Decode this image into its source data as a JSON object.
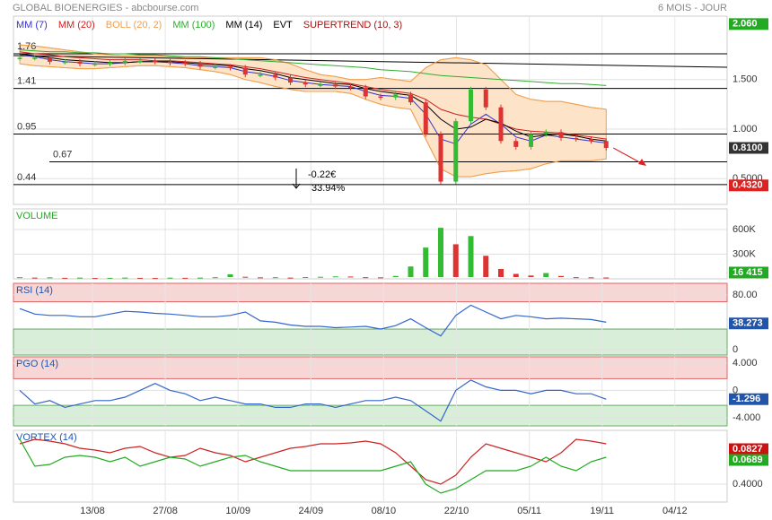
{
  "header": {
    "title": "GLOBAL BIOENERGIES - abcbourse.com",
    "period": "6 MOIS - JOUR"
  },
  "x_axis": {
    "labels": [
      "13/08",
      "27/08",
      "10/09",
      "24/09",
      "08/10",
      "22/10",
      "05/11",
      "19/11",
      "04/12"
    ]
  },
  "chart_data": [
    {
      "type": "candlestick",
      "values": [
        1.72,
        1.72,
        1.68,
        1.68,
        1.66,
        1.66,
        1.67,
        1.69,
        1.69,
        1.68,
        1.67,
        1.66,
        1.63,
        1.63,
        1.62,
        1.55,
        1.55,
        1.52,
        1.47,
        1.45,
        1.45,
        1.43,
        1.42,
        1.33,
        1.32,
        1.35,
        1.27,
        0.95,
        0.47,
        1.08,
        1.4,
        1.22,
        0.88,
        0.82,
        0.95,
        0.97,
        0.91,
        0.9,
        0.88,
        0.81
      ],
      "series": [
        {
          "name": "MM (7)",
          "color": "#3333cc",
          "values": [
            1.75,
            1.73,
            1.7,
            1.68,
            1.67,
            1.66,
            1.66,
            1.67,
            1.68,
            1.68,
            1.67,
            1.66,
            1.64,
            1.63,
            1.62,
            1.58,
            1.56,
            1.53,
            1.49,
            1.47,
            1.45,
            1.44,
            1.43,
            1.38,
            1.34,
            1.33,
            1.31,
            1.15,
            0.9,
            0.85,
            1.05,
            1.15,
            1.05,
            0.92,
            0.88,
            0.94,
            0.92,
            0.9,
            0.88,
            0.86
          ]
        },
        {
          "name": "MM (20)",
          "color": "#cc2222",
          "values": [
            1.78,
            1.76,
            1.75,
            1.73,
            1.72,
            1.71,
            1.7,
            1.7,
            1.7,
            1.69,
            1.69,
            1.68,
            1.67,
            1.66,
            1.65,
            1.63,
            1.61,
            1.58,
            1.55,
            1.52,
            1.5,
            1.48,
            1.46,
            1.43,
            1.4,
            1.38,
            1.36,
            1.3,
            1.2,
            1.15,
            1.12,
            1.1,
            1.05,
            1.0,
            0.98,
            0.97,
            0.96,
            0.94,
            0.92,
            0.9
          ]
        },
        {
          "name": "BOLL (20, 2)",
          "color": "#f0a050",
          "values": [
            1.85,
            1.84,
            1.82,
            1.8,
            1.78,
            1.76,
            1.75,
            1.74,
            1.74,
            1.74,
            1.73,
            1.72,
            1.72,
            1.72,
            1.72,
            1.72,
            1.72,
            1.7,
            1.66,
            1.6,
            1.55,
            1.53,
            1.5,
            1.5,
            1.52,
            1.5,
            1.48,
            1.62,
            1.7,
            1.72,
            1.7,
            1.65,
            1.5,
            1.35,
            1.3,
            1.28,
            1.28,
            1.25,
            1.22,
            1.2
          ],
          "lower": [
            1.66,
            1.64,
            1.63,
            1.62,
            1.61,
            1.61,
            1.62,
            1.63,
            1.64,
            1.64,
            1.63,
            1.62,
            1.6,
            1.58,
            1.55,
            1.5,
            1.47,
            1.43,
            1.4,
            1.38,
            1.38,
            1.38,
            1.36,
            1.3,
            1.25,
            1.22,
            1.2,
            0.9,
            0.6,
            0.52,
            0.52,
            0.55,
            0.57,
            0.58,
            0.6,
            0.65,
            0.68,
            0.68,
            0.68,
            0.7
          ]
        },
        {
          "name": "MM (100)",
          "color": "#33aa33",
          "values": [
            1.8,
            1.79,
            1.78,
            1.78,
            1.77,
            1.77,
            1.76,
            1.76,
            1.75,
            1.75,
            1.74,
            1.73,
            1.73,
            1.72,
            1.71,
            1.7,
            1.69,
            1.68,
            1.67,
            1.66,
            1.65,
            1.64,
            1.63,
            1.62,
            1.6,
            1.59,
            1.58,
            1.56,
            1.54,
            1.53,
            1.52,
            1.51,
            1.5,
            1.49,
            1.48,
            1.47,
            1.46,
            1.46,
            1.45,
            1.44
          ]
        },
        {
          "name": "MM (14)",
          "color": "#000000",
          "values": [
            1.76,
            1.74,
            1.72,
            1.7,
            1.69,
            1.68,
            1.67,
            1.67,
            1.68,
            1.68,
            1.68,
            1.67,
            1.66,
            1.65,
            1.64,
            1.61,
            1.59,
            1.56,
            1.52,
            1.5,
            1.48,
            1.46,
            1.45,
            1.41,
            1.38,
            1.36,
            1.34,
            1.25,
            1.1,
            1.0,
            1.02,
            1.1,
            1.06,
            0.98,
            0.92,
            0.94,
            0.95,
            0.93,
            0.9,
            0.88
          ]
        }
      ],
      "legend_extra": [
        {
          "name": "EVT",
          "color": "#000000"
        },
        {
          "name": "SUPERTREND (10, 3)",
          "color": "#aa1111"
        }
      ],
      "up_color": "#33bb33",
      "down_color": "#dd3333",
      "levels": [
        1.76,
        1.41,
        0.95,
        0.67,
        0.44
      ],
      "annotation": [
        "-0.22€",
        "33.94%"
      ],
      "ylim": [
        0.24,
        2.14
      ],
      "yticks": [
        {
          "value": 1.5,
          "label": "1.500"
        },
        {
          "value": 1,
          "label": "1.000"
        },
        {
          "value": 0.5,
          "label": "0.5000"
        }
      ],
      "badges": [
        {
          "value": 2.06,
          "label": "2.060",
          "color": "#22aa22"
        },
        {
          "value": 0.81,
          "label": "0.8100",
          "color": "#333333"
        },
        {
          "value": 0.432,
          "label": "0.4320",
          "color": "#dd2222"
        }
      ]
    },
    {
      "type": "bar",
      "title": "VOLUME",
      "color": "#dd3333",
      "up_color": "#33bb33",
      "values": [
        20000,
        15000,
        18000,
        12000,
        15000,
        10000,
        12000,
        15000,
        12000,
        10000,
        14000,
        12000,
        15000,
        20000,
        55000,
        25000,
        18000,
        20000,
        15000,
        22000,
        25000,
        30000,
        28000,
        20000,
        18000,
        35000,
        150000,
        380000,
        620000,
        420000,
        520000,
        280000,
        120000,
        60000,
        40000,
        70000,
        35000,
        20000,
        18000,
        16415
      ],
      "ylim": [
        0,
        850000
      ],
      "yticks": [
        {
          "value": 600000,
          "label": "600K"
        },
        {
          "value": 300000,
          "label": "300K"
        }
      ],
      "badges": [
        {
          "value": 16415,
          "label": "16 415",
          "color": "#22aa22"
        }
      ]
    },
    {
      "type": "line",
      "title": "RSI (14)",
      "color": "#3366cc",
      "values": [
        60,
        52,
        50,
        50,
        48,
        48,
        52,
        56,
        55,
        53,
        52,
        50,
        48,
        48,
        50,
        55,
        42,
        40,
        36,
        34,
        34,
        32,
        33,
        34,
        30,
        35,
        45,
        32,
        20,
        50,
        65,
        55,
        45,
        50,
        48,
        45,
        46,
        45,
        44,
        40
      ],
      "ylim": [
        -8,
        97
      ],
      "yticks": [
        {
          "value": 80,
          "label": "80.00"
        },
        0
      ],
      "overbought": 70,
      "oversold": 30,
      "badges": [
        {
          "value": 38.273,
          "label": "38.273",
          "color": "#2255aa"
        }
      ]
    },
    {
      "type": "line",
      "title": "PGO (14)",
      "color": "#3366cc",
      "values": [
        0,
        -2,
        -1.5,
        -2.5,
        -2,
        -1.5,
        -1.5,
        -1,
        0,
        1,
        0,
        -0.5,
        -1.5,
        -1,
        -1.5,
        -2,
        -2,
        -2.5,
        -2.5,
        -2,
        -2,
        -2.5,
        -2,
        -1.5,
        -1.5,
        -1,
        -1.5,
        -3,
        -4.5,
        0,
        1.5,
        0.5,
        0,
        0,
        -0.5,
        0,
        0,
        -0.5,
        -0.5,
        -1.3
      ],
      "ylim": [
        -5.2,
        4.9
      ],
      "yticks": [
        {
          "value": 4,
          "label": "4.000"
        },
        0,
        {
          "value": -4,
          "label": "-4.000"
        }
      ],
      "overbought": 1.7,
      "oversold": -2.2,
      "badges": [
        {
          "value": -1.296,
          "label": "-1.296",
          "color": "#2255aa"
        }
      ]
    },
    {
      "type": "line",
      "title": "VORTEX (14)",
      "series": [
        {
          "color": "#cc2222",
          "values": [
            0.85,
            0.9,
            0.88,
            0.85,
            0.8,
            0.78,
            0.75,
            0.8,
            0.82,
            0.75,
            0.7,
            0.72,
            0.8,
            0.75,
            0.72,
            0.65,
            0.7,
            0.75,
            0.8,
            0.82,
            0.85,
            0.85,
            0.86,
            0.88,
            0.85,
            0.75,
            0.6,
            0.45,
            0.4,
            0.5,
            0.7,
            0.85,
            0.8,
            0.75,
            0.7,
            0.65,
            0.75,
            0.9,
            0.88,
            0.85
          ]
        },
        {
          "color": "#22aa22",
          "values": [
            0.9,
            0.6,
            0.62,
            0.7,
            0.72,
            0.7,
            0.65,
            0.7,
            0.6,
            0.65,
            0.7,
            0.68,
            0.6,
            0.65,
            0.7,
            0.72,
            0.65,
            0.6,
            0.55,
            0.55,
            0.55,
            0.55,
            0.55,
            0.55,
            0.55,
            0.6,
            0.65,
            0.4,
            0.3,
            0.35,
            0.45,
            0.55,
            0.55,
            0.55,
            0.6,
            0.7,
            0.6,
            0.55,
            0.65,
            0.7
          ]
        }
      ],
      "ylim": [
        0.2,
        1.0
      ],
      "yticks": [
        {
          "value": 0.4,
          "label": "0.4000"
        }
      ],
      "badges": [
        {
          "value": 0.0827,
          "label": "0.0827",
          "color": "#cc1111"
        },
        {
          "value": 0.0689,
          "label": "0.0689",
          "color": "#22aa22"
        }
      ]
    }
  ]
}
